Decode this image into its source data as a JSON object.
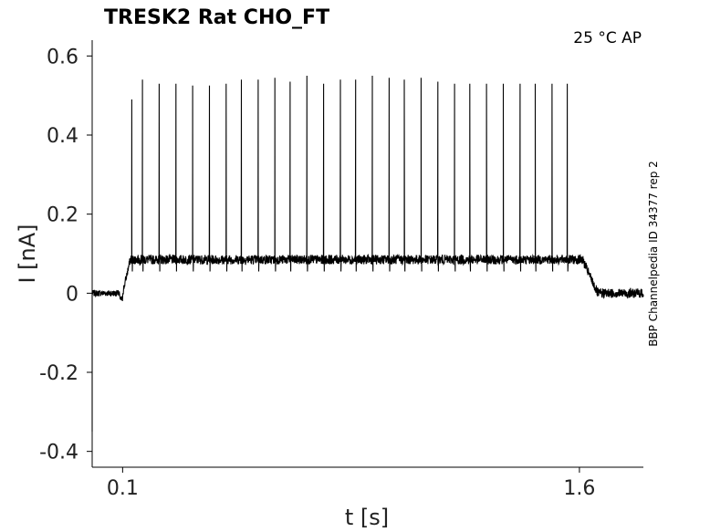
{
  "chart_data": {
    "type": "line",
    "title": "TRESK2  Rat  CHO_FT",
    "annotation": "25 °C  AP",
    "side_label": "BBP Channelpedia ID 34377 rep 2",
    "xlabel": "t [s]",
    "ylabel": "I [nA]",
    "xlim": [
      0.0,
      1.81
    ],
    "ylim": [
      -0.44,
      0.64
    ],
    "x_ticks": [
      {
        "value": 0.1,
        "label": "0.1"
      },
      {
        "value": 1.6,
        "label": "1.6"
      }
    ],
    "y_ticks": [
      {
        "value": 0.6,
        "label": "0.6"
      },
      {
        "value": 0.4,
        "label": "0.4"
      },
      {
        "value": 0.2,
        "label": "0.2"
      },
      {
        "value": 0.0,
        "label": "0"
      },
      {
        "value": -0.2,
        "label": "-0.2"
      },
      {
        "value": -0.4,
        "label": "-0.4"
      }
    ],
    "grid": false,
    "line_color": "#000000",
    "series": [
      {
        "baseline_before": 0.0,
        "plateau": 0.085,
        "stim_start": 0.1,
        "stim_end": 1.6,
        "spike_times": [
          0.13,
          0.165,
          0.22,
          0.275,
          0.33,
          0.385,
          0.44,
          0.49,
          0.545,
          0.6,
          0.65,
          0.705,
          0.76,
          0.815,
          0.865,
          0.92,
          0.975,
          1.025,
          1.08,
          1.135,
          1.19,
          1.24,
          1.295,
          1.35,
          1.405,
          1.455,
          1.51,
          1.56
        ],
        "spike_peaks": [
          0.49,
          0.54,
          0.53,
          0.53,
          0.525,
          0.525,
          0.53,
          0.54,
          0.54,
          0.545,
          0.535,
          0.55,
          0.53,
          0.54,
          0.54,
          0.55,
          0.545,
          0.54,
          0.545,
          0.535,
          0.53,
          0.53,
          0.53,
          0.53,
          0.53,
          0.53,
          0.53,
          0.53
        ]
      }
    ]
  }
}
